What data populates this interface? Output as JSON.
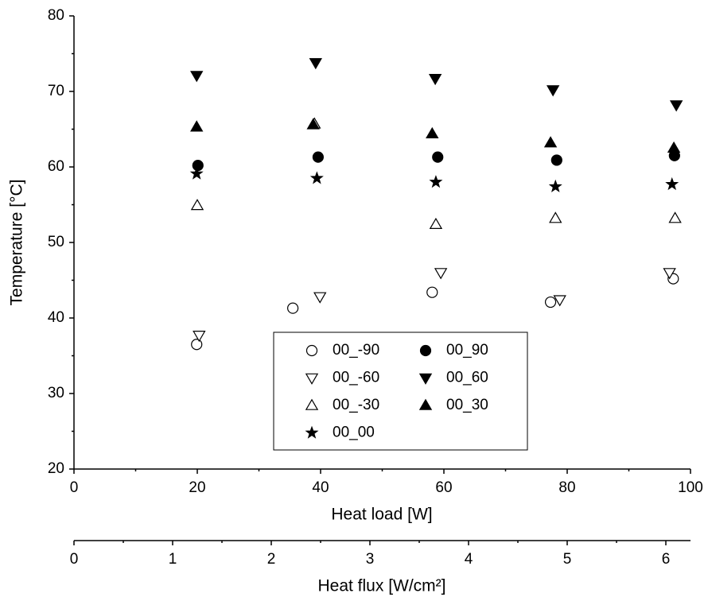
{
  "chart_data": {
    "type": "scatter",
    "x_label": "Heat load [W]",
    "y_label": "Temperature [°C]",
    "xlim": [
      0,
      100
    ],
    "xticks": [
      0,
      20,
      40,
      60,
      80,
      100
    ],
    "ylim": [
      20,
      80
    ],
    "yticks": [
      20,
      30,
      40,
      50,
      60,
      70,
      80
    ],
    "x2_label": "Heat flux [W/cm²]",
    "x2lim": [
      0,
      6.25
    ],
    "x2ticks": [
      0,
      1,
      2,
      3,
      4,
      5,
      6
    ],
    "legend_position": "lower center",
    "series": [
      {
        "name": "00_-90",
        "marker": "circle",
        "filled": false,
        "color": "#000000",
        "x": [
          19.9,
          35.5,
          58.1,
          77.3,
          97.2
        ],
        "values": [
          36.5,
          41.3,
          43.4,
          42.1,
          45.2
        ]
      },
      {
        "name": "00_-60",
        "marker": "triangle-down",
        "filled": false,
        "color": "#000000",
        "x": [
          20.3,
          39.9,
          59.5,
          78.8,
          96.6
        ],
        "values": [
          37.7,
          42.8,
          46.0,
          42.4,
          46.0
        ]
      },
      {
        "name": "00_-30",
        "marker": "triangle-up",
        "filled": false,
        "color": "#000000",
        "x": [
          20.0,
          39.0,
          58.7,
          78.1,
          97.5
        ],
        "values": [
          54.9,
          65.7,
          52.4,
          53.2,
          53.2
        ]
      },
      {
        "name": "00_00",
        "marker": "star",
        "filled": true,
        "color": "#000000",
        "x": [
          19.9,
          39.4,
          58.7,
          78.1,
          97.0
        ],
        "values": [
          59.1,
          58.5,
          58.0,
          57.4,
          57.7
        ]
      },
      {
        "name": "00_90",
        "marker": "circle",
        "filled": true,
        "color": "#000000",
        "x": [
          20.1,
          39.6,
          59.0,
          78.3,
          97.4
        ],
        "values": [
          60.2,
          61.3,
          61.3,
          60.9,
          61.5
        ]
      },
      {
        "name": "00_60",
        "marker": "triangle-down",
        "filled": true,
        "color": "#000000",
        "x": [
          19.9,
          39.2,
          58.6,
          77.7,
          97.7
        ],
        "values": [
          72.1,
          73.8,
          71.7,
          70.2,
          68.2
        ]
      },
      {
        "name": "00_30",
        "marker": "triangle-up",
        "filled": true,
        "color": "#000000",
        "x": [
          19.9,
          38.8,
          58.1,
          77.3,
          97.3
        ],
        "values": [
          65.3,
          65.6,
          64.4,
          63.2,
          62.5
        ]
      }
    ]
  }
}
